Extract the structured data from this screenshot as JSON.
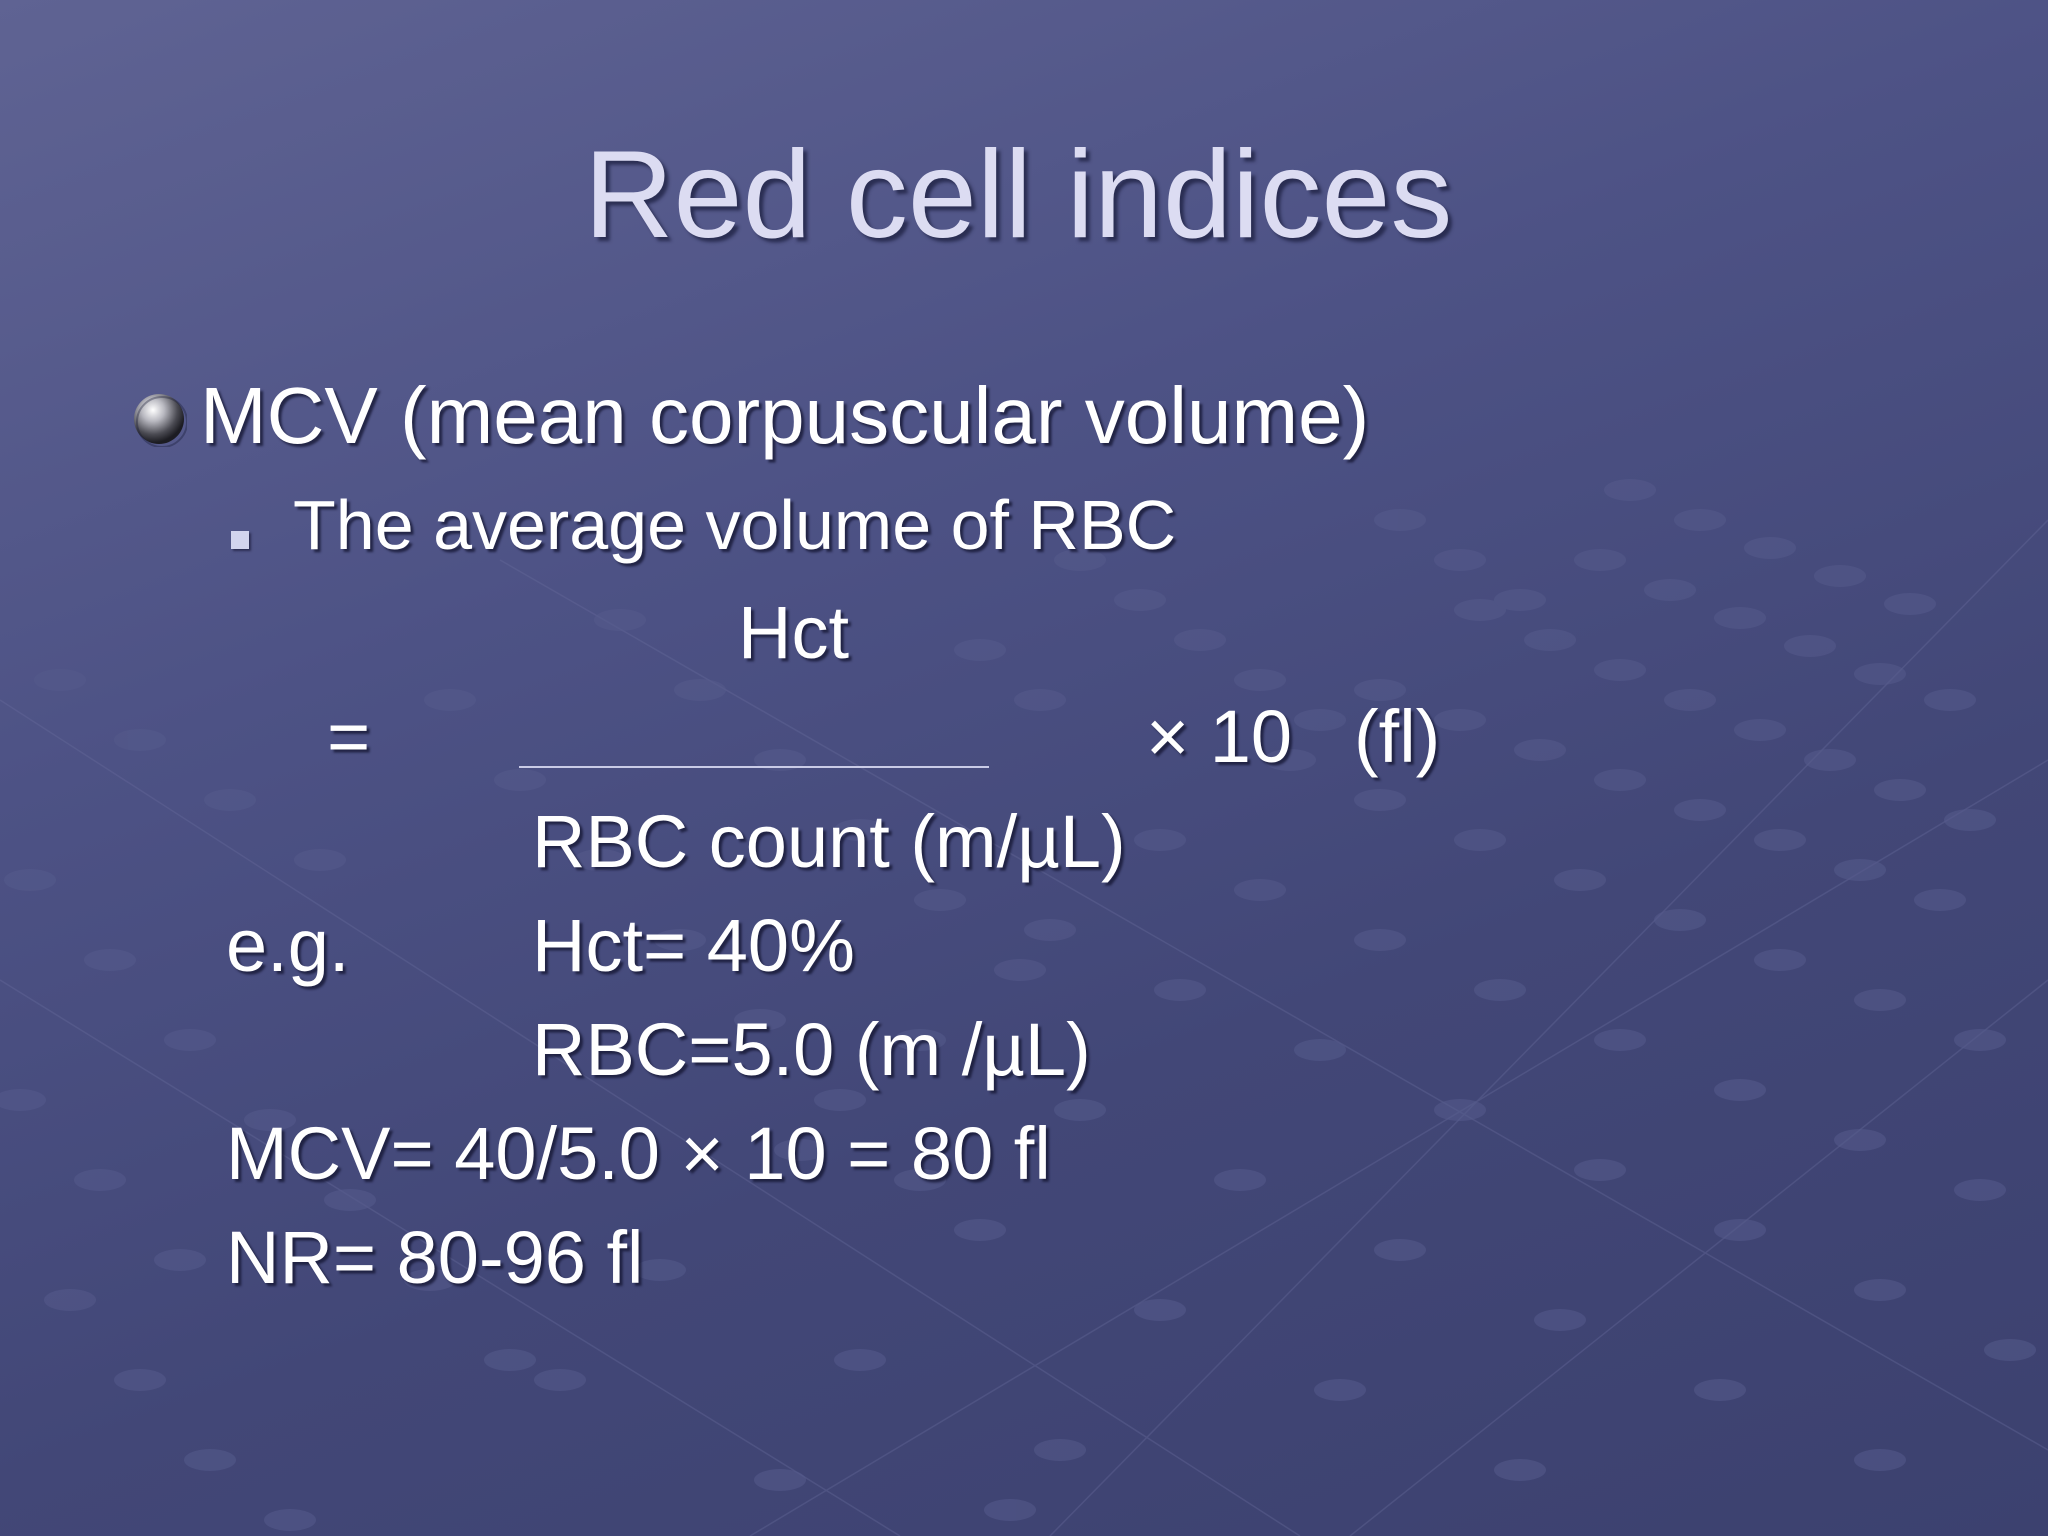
{
  "slide": {
    "title": "Red cell indices",
    "bullet1": "MCV (mean corpuscular volume)",
    "bullet2": "The average volume of RBC",
    "formula": {
      "numerator": "Hct",
      "equals": "=",
      "multiplier": "× 10",
      "unit": "(fl)",
      "denominator": "RBC count (m/µL)"
    },
    "example": {
      "label": "e.g.",
      "hct": "Hct= 40%",
      "rbc": "RBC=5.0 (m /µL)",
      "calc": "MCV= 40/5.0 × 10 = 80 fl",
      "normal_range": "NR= 80-96 fl"
    }
  },
  "colors": {
    "background": "#4d5285",
    "title": "#dcdcf2",
    "text": "#ffffff"
  }
}
